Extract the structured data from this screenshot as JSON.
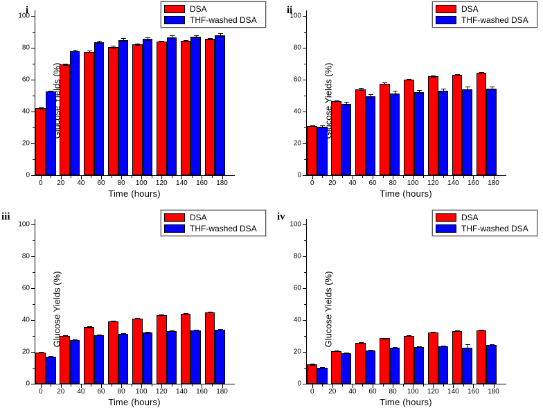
{
  "figure": {
    "background": "#ffffff",
    "accent_red": "#ff0000",
    "accent_blue": "#0000ff",
    "legend_labels": [
      "DSA",
      "THF-washed DSA"
    ]
  },
  "chart_data": [
    {
      "type": "bar",
      "panel_label": "i",
      "xlabel": "Time (hours)",
      "ylabel": "Glucose Yields (%)",
      "x": [
        0,
        24,
        48,
        72,
        96,
        120,
        144,
        168
      ],
      "xlim": [
        -6,
        192
      ],
      "ylim": [
        0,
        100
      ],
      "x_ticks": [
        0,
        20,
        40,
        60,
        80,
        100,
        120,
        140,
        160,
        180
      ],
      "x_minor_ticks": [
        10,
        30,
        50,
        70,
        90,
        110,
        130,
        150,
        170
      ],
      "y_ticks": [
        0,
        20,
        40,
        60,
        80,
        100
      ],
      "y_minor_ticks": [
        10,
        30,
        50,
        70,
        90
      ],
      "grid": false,
      "legend_position": "top-right",
      "series": [
        {
          "name": "DSA",
          "color": "#ff0000",
          "values": [
            42,
            69.5,
            77.5,
            80.5,
            82,
            84,
            84.5,
            85.5
          ],
          "errors": [
            0.5,
            0.6,
            0.7,
            0.8,
            0.7,
            0.5,
            0.5,
            0.5
          ]
        },
        {
          "name": "THF-washed DSA",
          "color": "#0000ff",
          "values": [
            52.5,
            78,
            83.5,
            85,
            85.5,
            86.5,
            87,
            88
          ],
          "errors": [
            0.5,
            0.6,
            1.0,
            1.0,
            1.0,
            1.2,
            1.0,
            1.0
          ]
        }
      ]
    },
    {
      "type": "bar",
      "panel_label": "ii",
      "xlabel": "Time (hours)",
      "ylabel": "Glucose Yields (%)",
      "x": [
        0,
        24,
        48,
        72,
        96,
        120,
        144,
        168
      ],
      "xlim": [
        -6,
        192
      ],
      "ylim": [
        0,
        100
      ],
      "x_ticks": [
        0,
        20,
        40,
        60,
        80,
        100,
        120,
        140,
        160,
        180
      ],
      "x_minor_ticks": [
        10,
        30,
        50,
        70,
        90,
        110,
        130,
        150,
        170
      ],
      "y_ticks": [
        0,
        20,
        40,
        60,
        80,
        100
      ],
      "y_minor_ticks": [
        10,
        30,
        50,
        70,
        90
      ],
      "grid": false,
      "legend_position": "top-right",
      "series": [
        {
          "name": "DSA",
          "color": "#ff0000",
          "values": [
            31,
            46.5,
            54,
            57.5,
            60,
            62,
            63,
            64.5
          ],
          "errors": [
            0.5,
            0.6,
            0.8,
            0.6,
            0.6,
            0.5,
            0.5,
            0.5
          ]
        },
        {
          "name": "THF-washed DSA",
          "color": "#0000ff",
          "values": [
            30.5,
            45,
            49.5,
            51.5,
            52,
            53,
            54,
            54.5
          ],
          "errors": [
            0.8,
            1.0,
            1.2,
            1.5,
            1.3,
            1.5,
            1.5,
            1.2
          ]
        }
      ]
    },
    {
      "type": "bar",
      "panel_label": "iii",
      "xlabel": "Time (hours)",
      "ylabel": "Glucose Yields (%)",
      "x": [
        0,
        24,
        48,
        72,
        96,
        120,
        144,
        168
      ],
      "xlim": [
        -6,
        192
      ],
      "ylim": [
        0,
        100
      ],
      "x_ticks": [
        0,
        20,
        40,
        60,
        80,
        100,
        120,
        140,
        160,
        180
      ],
      "x_minor_ticks": [
        10,
        30,
        50,
        70,
        90,
        110,
        130,
        150,
        170
      ],
      "y_ticks": [
        0,
        20,
        40,
        60,
        80,
        100
      ],
      "y_minor_ticks": [
        10,
        30,
        50,
        70,
        90
      ],
      "grid": false,
      "legend_position": "top-right",
      "series": [
        {
          "name": "DSA",
          "color": "#ff0000",
          "values": [
            19.5,
            30,
            35.5,
            39,
            41,
            43,
            44,
            45
          ],
          "errors": [
            0.4,
            0.4,
            0.5,
            0.4,
            0.4,
            0.4,
            0.3,
            0.4
          ]
        },
        {
          "name": "THF-washed DSA",
          "color": "#0000ff",
          "values": [
            17,
            27.5,
            30.5,
            31.5,
            32,
            33,
            33.5,
            34
          ],
          "errors": [
            0.3,
            0.4,
            0.5,
            0.4,
            0.5,
            0.4,
            0.5,
            0.4
          ]
        }
      ]
    },
    {
      "type": "bar",
      "panel_label": "iv",
      "xlabel": "Time (hours)",
      "ylabel": "Glucose Yields (%)",
      "x": [
        0,
        24,
        48,
        72,
        96,
        120,
        144,
        168
      ],
      "xlim": [
        -6,
        192
      ],
      "ylim": [
        0,
        100
      ],
      "x_ticks": [
        0,
        20,
        40,
        60,
        80,
        100,
        120,
        140,
        160,
        180
      ],
      "x_minor_ticks": [
        10,
        30,
        50,
        70,
        90,
        110,
        130,
        150,
        170
      ],
      "y_ticks": [
        0,
        20,
        40,
        60,
        80,
        100
      ],
      "y_minor_ticks": [
        10,
        30,
        50,
        70,
        90
      ],
      "grid": false,
      "legend_position": "top-right",
      "series": [
        {
          "name": "DSA",
          "color": "#ff0000",
          "values": [
            12,
            20.5,
            25.5,
            28.5,
            30,
            32,
            33,
            33.5
          ],
          "errors": [
            0.5,
            0.4,
            0.4,
            0.4,
            0.4,
            0.4,
            0.3,
            0.4
          ]
        },
        {
          "name": "THF-washed DSA",
          "color": "#0000ff",
          "values": [
            10,
            19,
            21,
            22.5,
            23,
            23.5,
            22.5,
            24.5
          ],
          "errors": [
            0.4,
            0.4,
            0.4,
            0.4,
            0.3,
            0.3,
            2.3,
            0.3
          ]
        }
      ]
    }
  ]
}
